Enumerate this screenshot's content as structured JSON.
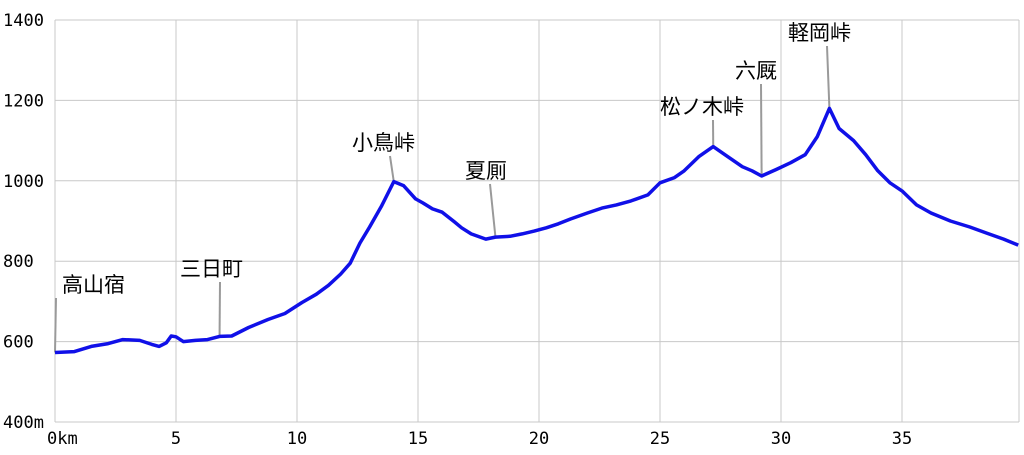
{
  "chart_data": {
    "type": "line",
    "title": "",
    "xlabel": "",
    "ylabel": "",
    "xlim": [
      0,
      40
    ],
    "ylim": [
      400,
      1400
    ],
    "grid": true,
    "x_ticks": [
      {
        "value": 0,
        "label": "0km"
      },
      {
        "value": 5,
        "label": "5"
      },
      {
        "value": 10,
        "label": "10"
      },
      {
        "value": 15,
        "label": "15"
      },
      {
        "value": 20,
        "label": "20"
      },
      {
        "value": 25,
        "label": "25"
      },
      {
        "value": 30,
        "label": "30"
      },
      {
        "value": 35,
        "label": "35"
      }
    ],
    "y_ticks": [
      {
        "value": 400,
        "label": "400m"
      },
      {
        "value": 600,
        "label": "600"
      },
      {
        "value": 800,
        "label": "800"
      },
      {
        "value": 1000,
        "label": "1000"
      },
      {
        "value": 1200,
        "label": "1200"
      },
      {
        "value": 1400,
        "label": "1400"
      }
    ],
    "series": [
      {
        "color": "#1010e8",
        "x": [
          0,
          0.8,
          1.5,
          2.2,
          2.8,
          3.5,
          4.0,
          4.3,
          4.6,
          4.8,
          5.0,
          5.3,
          5.8,
          6.3,
          6.8,
          7.3,
          8.0,
          8.8,
          9.5,
          10.2,
          10.8,
          11.3,
          11.8,
          12.2,
          12.6,
          13.0,
          13.5,
          14.0,
          14.4,
          14.9,
          15.2,
          15.6,
          16.0,
          16.5,
          16.8,
          17.2,
          17.8,
          18.2,
          18.8,
          19.3,
          19.8,
          20.3,
          20.8,
          21.3,
          22.0,
          22.6,
          23.2,
          23.8,
          24.5,
          25.0,
          25.6,
          26.0,
          26.6,
          27.2,
          27.8,
          28.4,
          28.8,
          29.2,
          29.8,
          30.4,
          31.0,
          31.5,
          32.0,
          32.4,
          33.0,
          33.5,
          34.0,
          34.5,
          35.0,
          35.6,
          36.2,
          37.0,
          37.8,
          38.5,
          39.2,
          39.8
        ],
        "y": [
          573,
          575,
          588,
          595,
          605,
          603,
          593,
          588,
          597,
          614,
          612,
          600,
          603,
          605,
          613,
          614,
          635,
          655,
          670,
          697,
          718,
          740,
          768,
          795,
          845,
          885,
          938,
          998,
          988,
          955,
          945,
          930,
          922,
          898,
          883,
          868,
          855,
          860,
          862,
          868,
          875,
          883,
          893,
          905,
          920,
          932,
          940,
          950,
          965,
          995,
          1008,
          1025,
          1060,
          1085,
          1060,
          1035,
          1025,
          1012,
          1028,
          1045,
          1065,
          1110,
          1180,
          1130,
          1100,
          1065,
          1025,
          995,
          975,
          940,
          920,
          900,
          885,
          870,
          855,
          840
        ]
      }
    ],
    "annotations": [
      {
        "label": "高山宿",
        "x": 0
      },
      {
        "label": "三日町",
        "x": 6.8
      },
      {
        "label": "小鳥峠",
        "x": 14.0
      },
      {
        "label": "夏厠",
        "x": 18.2
      },
      {
        "label": "松ノ木峠",
        "x": 27.2
      },
      {
        "label": "六厩",
        "x": 29.2
      },
      {
        "label": "軽岡峠",
        "x": 32.0
      }
    ]
  }
}
